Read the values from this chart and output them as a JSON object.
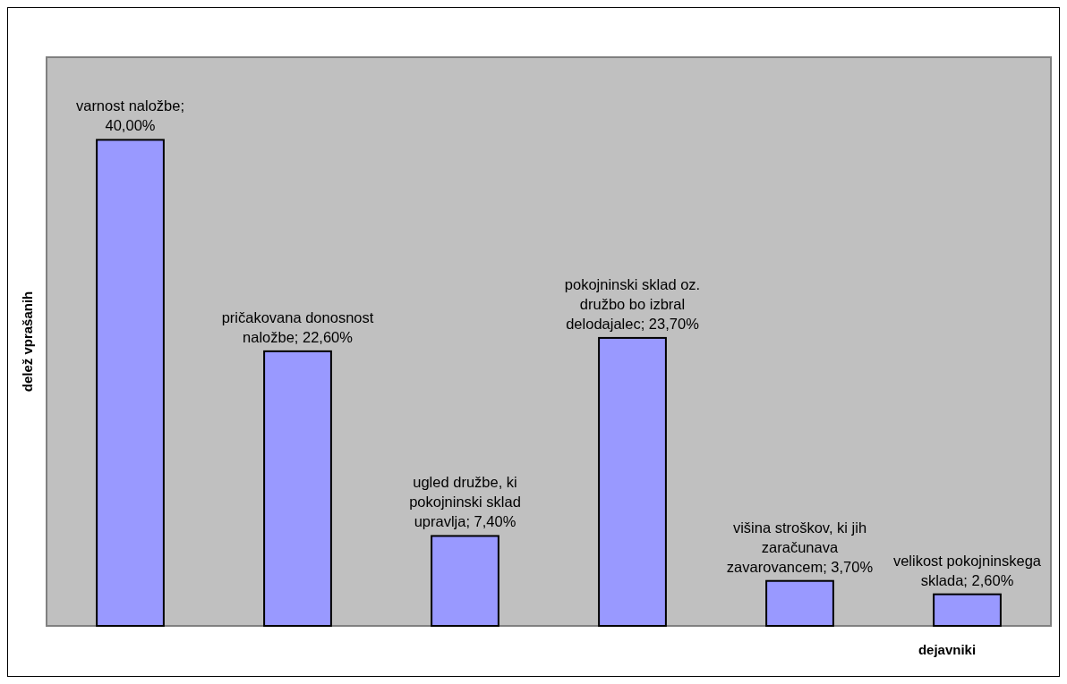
{
  "chart_data": {
    "type": "bar",
    "xlabel": "dejavniki",
    "ylabel": "delež vprašanih",
    "categories": [
      null,
      null,
      null,
      null,
      null,
      null
    ],
    "values": [
      40.0,
      22.6,
      7.4,
      23.7,
      3.7,
      2.6
    ],
    "value_labels": [
      "varnost naložbe;\n40,00%",
      "pričakovana donosnost\nnaložbe; 22,60%",
      "ugled družbe, ki\npokojninski sklad\nupravlja; 7,40%",
      "pokojninski sklad oz.\ndružbo bo izbral\ndelodajalec; 23,70%",
      "višina stroškov, ki jih\nzaračunava\nzavarovancem; 3,70%",
      "velikost pokojninskega\nsklada; 2,60%"
    ],
    "color": "#9999ff"
  }
}
